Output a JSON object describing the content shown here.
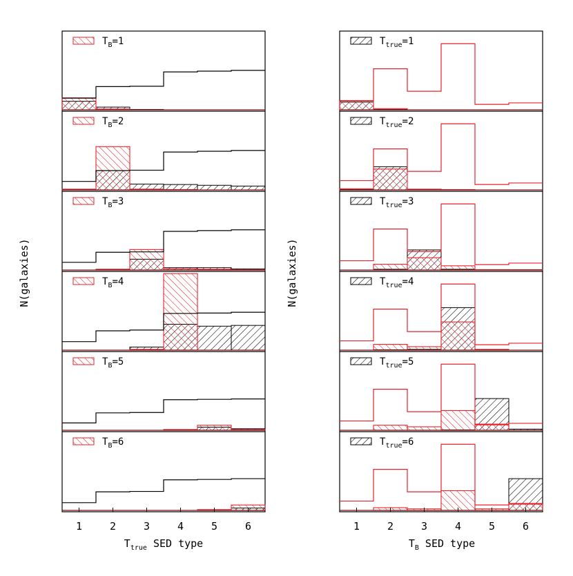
{
  "figure": {
    "left_panel": {
      "ylabel": "N(galaxies)",
      "xlabel_main": "T",
      "xlabel_sub": "true",
      "xlabel_rest": " SED type"
    },
    "right_panel": {
      "ylabel": "N(galaxies)",
      "xlabel_main": "T",
      "xlabel_sub": "B",
      "xlabel_rest": " SED type"
    },
    "colors": {
      "red": "#e8202a",
      "black": "#000000"
    }
  },
  "chart_data": [
    {
      "type": "bar",
      "title": "",
      "xlabel": "Ttrue SED type",
      "ylabel": "N(galaxies)",
      "categories": [
        "1",
        "2",
        "3",
        "4",
        "5",
        "6"
      ],
      "subpanels": [
        {
          "legend_main": "T",
          "legend_sub": "B",
          "legend_tail": "=1",
          "outline": [
            0.3,
            0.6,
            0.61,
            0.98,
            1.0,
            1.02
          ],
          "red": [
            0.31,
            0.02,
            0,
            0,
            0,
            0
          ],
          "black": [
            0.22,
            0.07,
            0.01,
            0,
            0,
            0
          ]
        },
        {
          "legend_main": "T",
          "legend_sub": "B",
          "legend_tail": "=2",
          "outline": [
            0.22,
            0.5,
            0.51,
            0.98,
            1.0,
            1.02
          ],
          "red": [
            0.02,
            1.12,
            0.02,
            0.01,
            0,
            0
          ],
          "black": [
            0.01,
            0.5,
            0.15,
            0.14,
            0.12,
            0.1
          ]
        },
        {
          "legend_main": "T",
          "legend_sub": "B",
          "legend_tail": "=3",
          "outline": [
            0.2,
            0.46,
            0.47,
            1.0,
            1.02,
            1.04
          ],
          "red": [
            0,
            0.02,
            0.53,
            0.03,
            0.02,
            0.01
          ],
          "black": [
            0,
            0.02,
            0.28,
            0.06,
            0.06,
            0.03
          ]
        },
        {
          "legend_main": "T",
          "legend_sub": "B",
          "legend_tail": "=4",
          "outline": [
            0.22,
            0.5,
            0.52,
            0.95,
            0.96,
            0.98
          ],
          "red": [
            0,
            0,
            0.02,
            1.98,
            0,
            0
          ],
          "black": [
            0,
            0,
            0.08,
            0.67,
            0.62,
            0.64
          ]
        },
        {
          "legend_main": "T",
          "legend_sub": "B",
          "legend_tail": "=5",
          "outline": [
            0.19,
            0.45,
            0.46,
            0.79,
            0.8,
            0.81
          ],
          "red": [
            0,
            0,
            0,
            0.02,
            0.13,
            0.02
          ],
          "black": [
            0,
            0,
            0,
            0.01,
            0.08,
            0.04
          ]
        },
        {
          "legend_main": "T",
          "legend_sub": "B",
          "legend_tail": "=6",
          "outline": [
            0.2,
            0.48,
            0.49,
            0.79,
            0.8,
            0.82
          ],
          "red": [
            0,
            0,
            0,
            0,
            0.02,
            0.14
          ],
          "black": [
            0,
            0,
            0,
            0,
            0,
            0.06
          ]
        }
      ]
    },
    {
      "type": "bar",
      "title": "",
      "xlabel": "TB SED type",
      "ylabel": "N(galaxies)",
      "categories": [
        "1",
        "2",
        "3",
        "4",
        "5",
        "6"
      ],
      "subpanels": [
        {
          "legend_main": "T",
          "legend_sub": "true",
          "legend_tail": "=1",
          "outline": [
            0.24,
            1.06,
            0.48,
            1.71,
            0.14,
            0.18
          ],
          "red": [
            0.23,
            0.03,
            0,
            0,
            0,
            0
          ],
          "black": [
            0.2,
            0.01,
            0,
            0,
            0,
            0
          ]
        },
        {
          "legend_main": "T",
          "legend_sub": "true",
          "legend_tail": "=2",
          "outline": [
            0.24,
            1.06,
            0.48,
            1.71,
            0.14,
            0.18
          ],
          "red": [
            0.03,
            0.54,
            0.02,
            0.01,
            0,
            0
          ],
          "black": [
            0.01,
            0.6,
            0.01,
            0,
            0,
            0
          ]
        },
        {
          "legend_main": "T",
          "legend_sub": "true",
          "legend_tail": "=3",
          "outline": [
            0.24,
            1.06,
            0.48,
            1.71,
            0.14,
            0.18
          ],
          "red": [
            0,
            0.15,
            0.32,
            0.11,
            0.01,
            0.01
          ],
          "black": [
            0,
            0.02,
            0.52,
            0.02,
            0.01,
            0
          ]
        },
        {
          "legend_main": "T",
          "legend_sub": "true",
          "legend_tail": "=4",
          "outline": [
            0.24,
            1.06,
            0.48,
            1.71,
            0.14,
            0.18
          ],
          "red": [
            0,
            0.15,
            0.09,
            0.73,
            0.02,
            0
          ],
          "black": [
            0,
            0.01,
            0.02,
            1.1,
            0.01,
            0
          ]
        },
        {
          "legend_main": "T",
          "legend_sub": "true",
          "legend_tail": "=5",
          "outline": [
            0.24,
            1.06,
            0.48,
            1.71,
            0.14,
            0.18
          ],
          "red": [
            0,
            0.13,
            0.09,
            0.51,
            0.16,
            0
          ],
          "black": [
            0,
            0,
            0,
            0.01,
            0.82,
            0.03
          ]
        },
        {
          "legend_main": "T",
          "legend_sub": "true",
          "legend_tail": "=6",
          "outline": [
            0.24,
            1.06,
            0.48,
            1.71,
            0.14,
            0.18
          ],
          "red": [
            0,
            0.07,
            0.04,
            0.51,
            0.04,
            0.16
          ],
          "black": [
            0,
            0,
            0,
            0,
            0,
            0.82
          ]
        }
      ]
    }
  ]
}
